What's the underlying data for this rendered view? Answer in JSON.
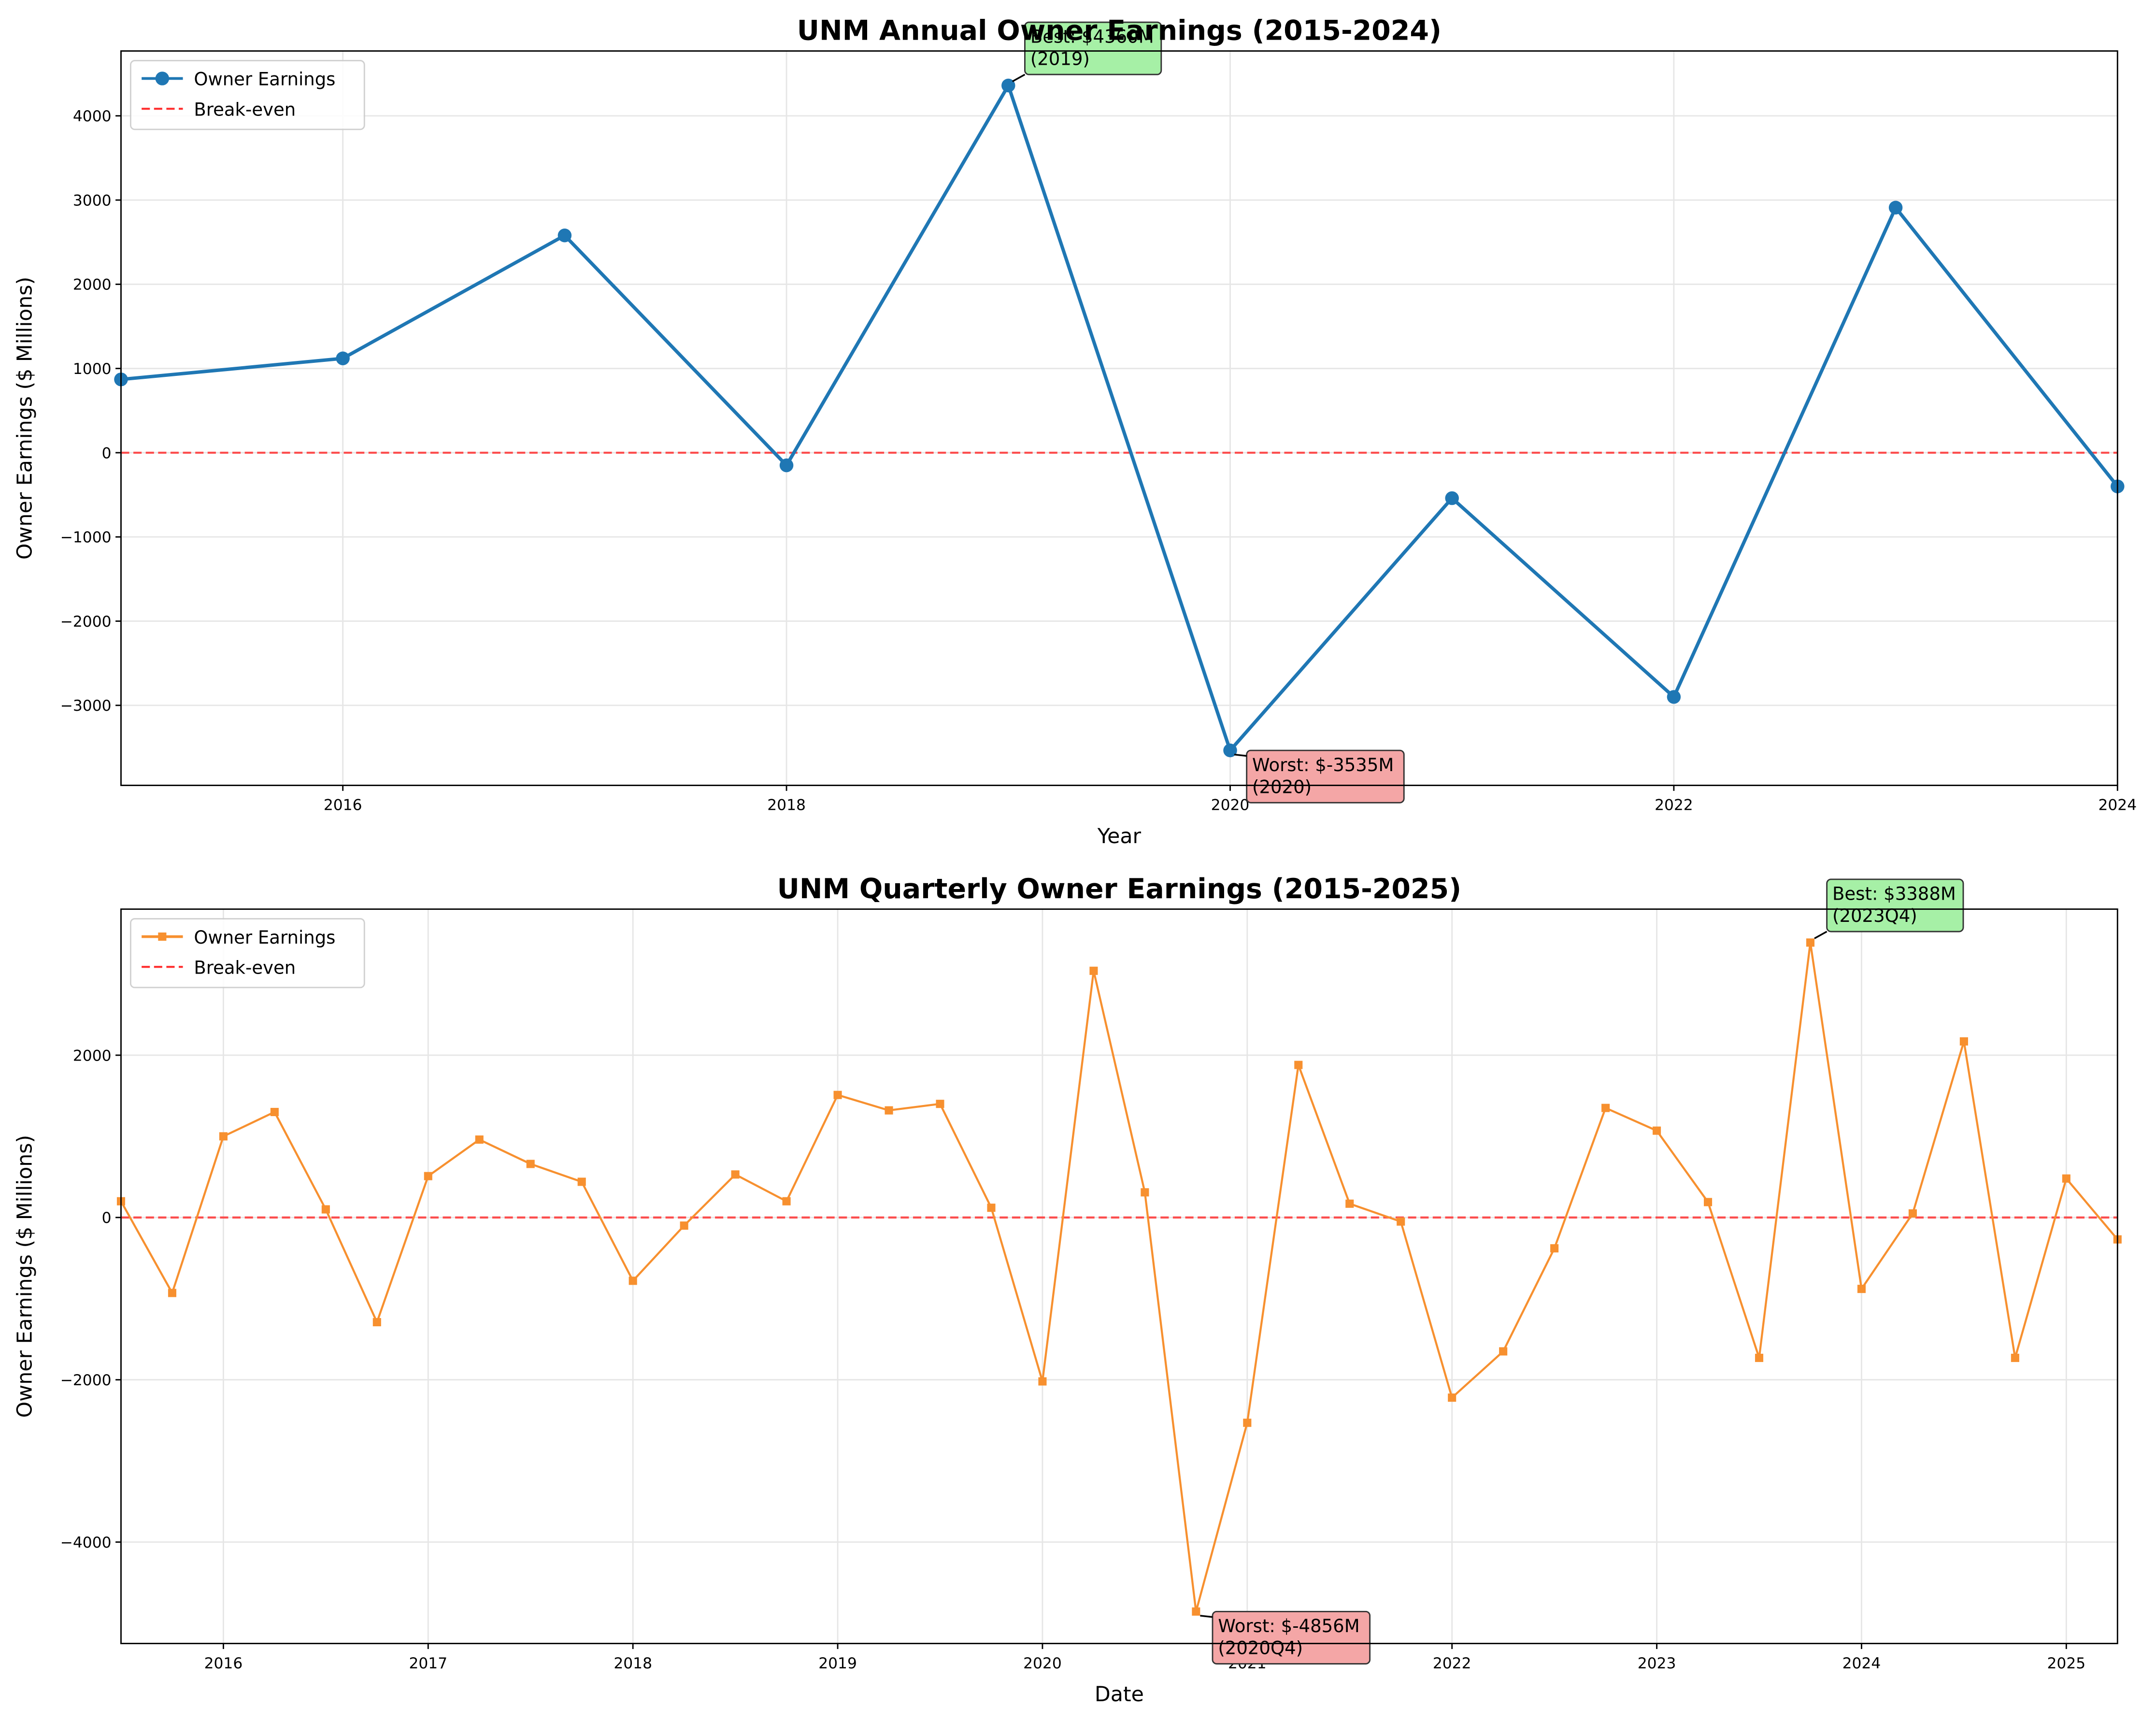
{
  "chart_data": [
    {
      "type": "line",
      "title": "UNM Annual Owner Earnings (2015-2024)",
      "x_label": "Year",
      "y_label": "Owner Earnings ($ Millions)",
      "x": [
        2015,
        2016,
        2017,
        2018,
        2019,
        2020,
        2021,
        2022,
        2023,
        2024
      ],
      "series": [
        {
          "name": "Owner Earnings",
          "color": "#1f77b4",
          "marker": "circle",
          "values": [
            870,
            1120,
            2580,
            -150,
            4360,
            -3535,
            -540,
            -2900,
            2910,
            -400
          ]
        }
      ],
      "reference_line": {
        "name": "Break-even",
        "value": 0,
        "color": "#ff3333"
      },
      "best": [
        "Best: $4360M",
        "(2019)"
      ],
      "worst": [
        "Worst: $-3535M",
        "(2020)"
      ],
      "xlim": [
        2015,
        2024
      ],
      "xticks": [
        2016,
        2018,
        2020,
        2022,
        2024
      ],
      "ylim": [
        -3950,
        4770
      ],
      "yticks": [
        {
          "value": -3000,
          "label": "−3000"
        },
        {
          "value": -2000,
          "label": "−2000"
        },
        {
          "value": -1000,
          "label": "−1000"
        },
        0,
        1000,
        2000,
        3000,
        4000
      ],
      "grid": true,
      "legend": "upper left"
    },
    {
      "type": "line",
      "title": "UNM Quarterly Owner Earnings (2015-2025)",
      "x_label": "Date",
      "y_label": "Owner Earnings ($ Millions)",
      "x": [
        2015.5,
        2015.75,
        2016,
        2016.25,
        2016.5,
        2016.75,
        2017,
        2017.25,
        2017.5,
        2017.75,
        2018,
        2018.25,
        2018.5,
        2018.75,
        2019,
        2019.25,
        2019.5,
        2019.75,
        2020,
        2020.25,
        2020.5,
        2020.75,
        2021,
        2021.25,
        2021.5,
        2021.75,
        2022,
        2022.25,
        2022.5,
        2022.75,
        2023,
        2023.25,
        2023.5,
        2023.75,
        2024,
        2024.25,
        2024.5,
        2024.75,
        2025,
        2025.25
      ],
      "series": [
        {
          "name": "Owner Earnings",
          "color": "#f7902f",
          "marker": "square",
          "values": [
            200,
            -930,
            1000,
            1300,
            100,
            -1290,
            510,
            960,
            660,
            440,
            -780,
            -100,
            530,
            200,
            1510,
            1320,
            1400,
            120,
            -2020,
            3040,
            310,
            -4856,
            -2530,
            1880,
            170,
            -50,
            -2220,
            -1650,
            -380,
            1350,
            1070,
            190,
            -1730,
            3388,
            -880,
            50,
            2170,
            -1730,
            480,
            -270
          ]
        }
      ],
      "reference_line": {
        "name": "Break-even",
        "value": 0,
        "color": "#ff3333"
      },
      "best": [
        "Best: $3388M",
        "(2023Q4)"
      ],
      "worst": [
        "Worst: $-4856M",
        "(2020Q4)"
      ],
      "xlim": [
        2015.5,
        2025.25
      ],
      "xticks": [
        2016,
        2017,
        2018,
        2019,
        2020,
        2021,
        2022,
        2023,
        2024,
        2025
      ],
      "ylim": [
        -5250,
        3800
      ],
      "yticks": [
        {
          "value": -4000,
          "label": "−4000"
        },
        {
          "value": -2000,
          "label": "−2000"
        },
        0,
        2000
      ],
      "grid": true,
      "legend": "upper left"
    }
  ]
}
